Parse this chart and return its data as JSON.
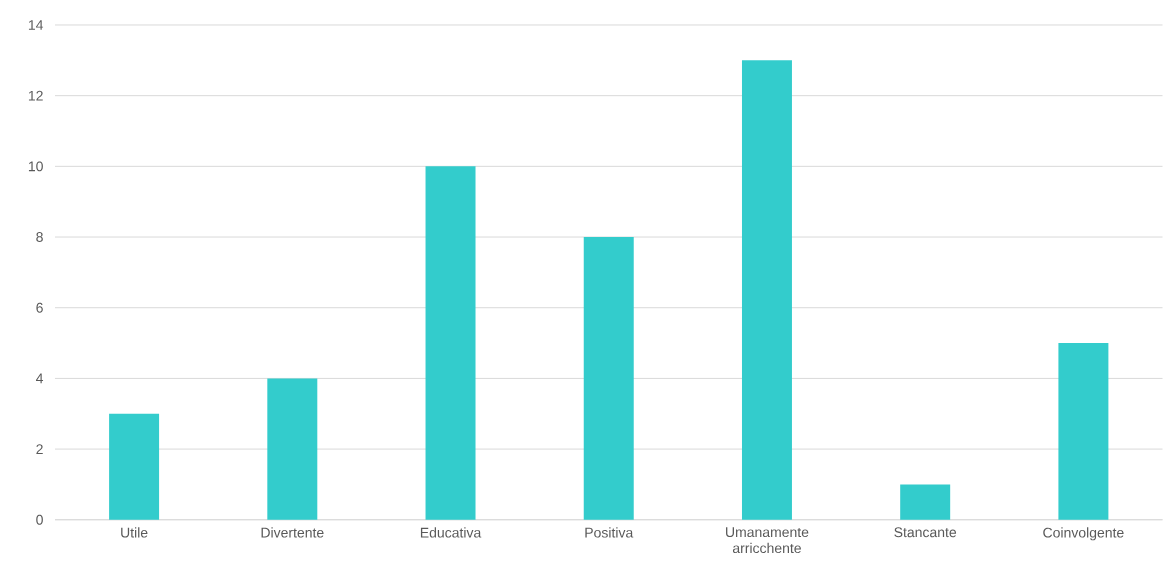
{
  "chart_data": {
    "type": "bar",
    "categories": [
      "Utile",
      "Divertente",
      "Educativa",
      "Positiva",
      "Umanamente arricchente",
      "Stancante",
      "Coinvolgente"
    ],
    "values": [
      3,
      4,
      10,
      8,
      13,
      1,
      5
    ],
    "color": "#33cccc",
    "ylim": [
      0,
      14
    ],
    "yticks": [
      0,
      2,
      4,
      6,
      8,
      10,
      12,
      14
    ],
    "grid": "y"
  }
}
